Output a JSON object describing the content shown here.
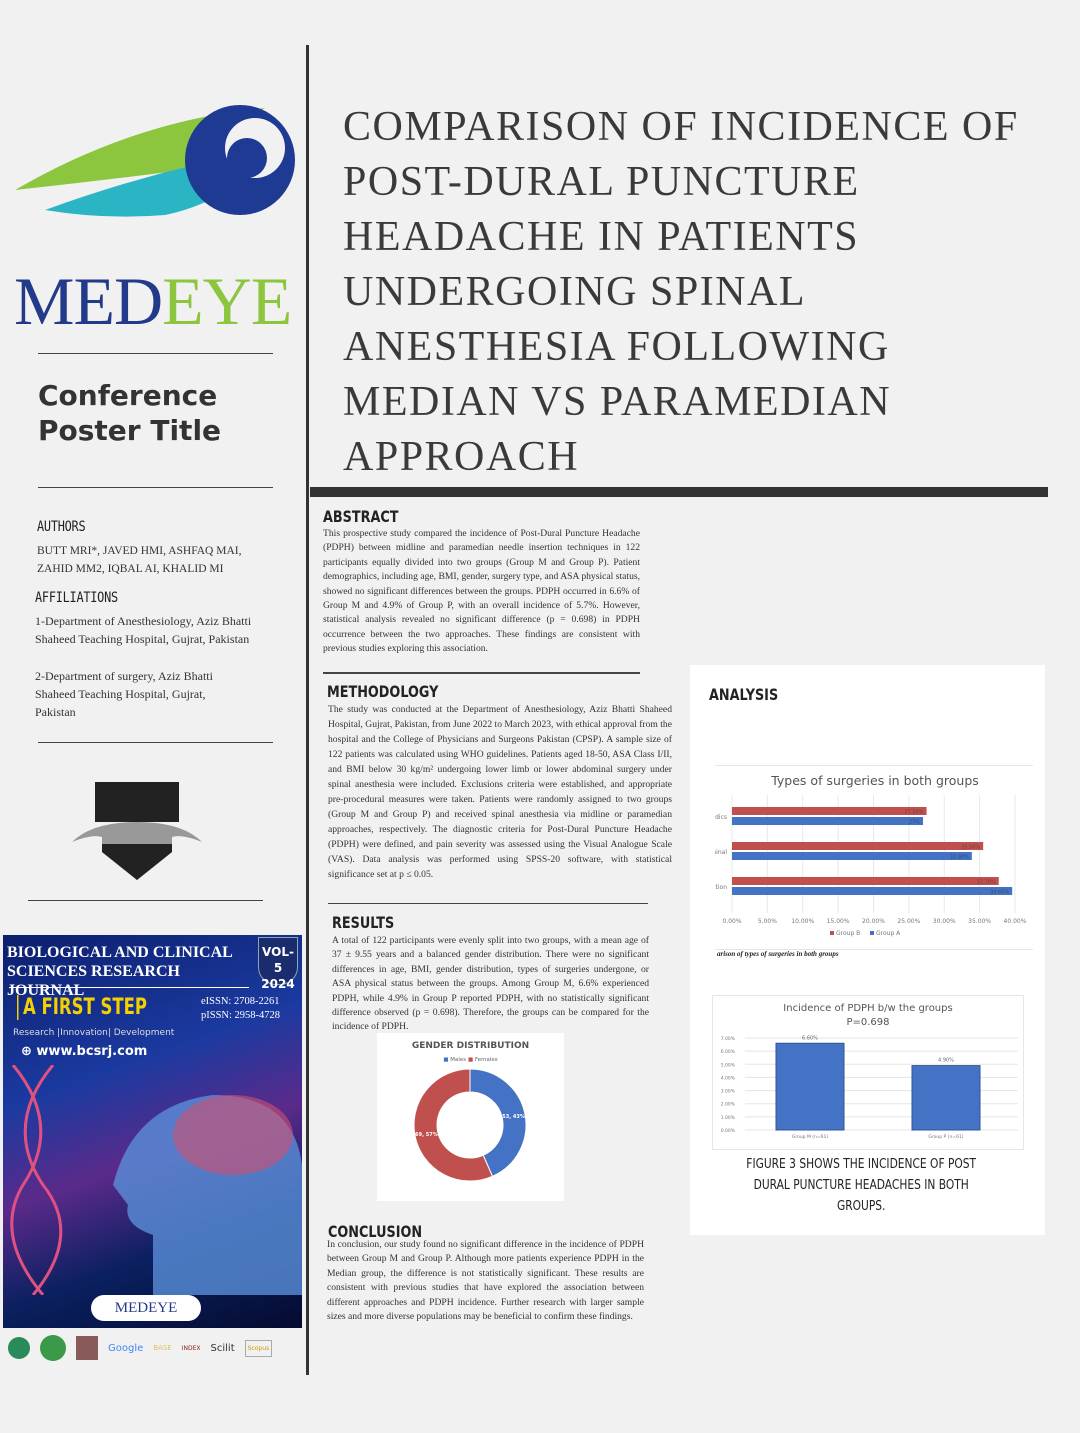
{
  "title": "COMPARISON OF INCIDENCE OF POST-DURAL PUNCTURE HEADACHE IN PATIENTS UNDERGOING SPINAL ANESTHESIA FOLLOWING MEDIAN VS PARAMEDIAN APPROACH",
  "logo": {
    "part1": "MED",
    "part2": "EYE"
  },
  "conference_title": "Conference Poster Title",
  "authors": {
    "heading": "AUTHORS",
    "text": "BUTT MRI*, JAVED HMI, ASHFAQ MAI, ZAHID MM2, IQBAL AI, KHALID MI"
  },
  "affiliations": {
    "heading": "AFFILIATIONS",
    "items": [
      "1-Department of Anesthesiology, Aziz Bhatti Shaheed Teaching Hospital, Gujrat, Pakistan",
      "2-Department of surgery, Aziz Bhatti Shaheed Teaching Hospital, Gujrat, Pakistan"
    ]
  },
  "journal_cover": {
    "title": "BIOLOGICAL AND CLINICAL SCIENCES RESEARCH JOURNAL",
    "volume": "VOL-5",
    "year": "2024",
    "tagline": "A FIRST STEP",
    "eissn": "eISSN: 2708-2261",
    "pissn": "pISSN: 2958-4728",
    "motto": "Research |Innovation| Development",
    "website": "www.bcsrj.com",
    "badge": "MEDEYE",
    "indexers": [
      "Google",
      "BASE",
      "INDEX",
      "Scilit",
      "Scopus"
    ]
  },
  "abstract": {
    "heading": "ABSTRACT",
    "text": "This prospective study compared the incidence of Post-Dural Puncture Headache (PDPH) between midline and paramedian needle insertion techniques in 122 participants equally divided into two groups (Group M and Group P). Patient demographics, including age, BMI, gender, surgery type, and ASA physical status, showed no significant differences between the groups. PDPH occurred in 6.6% of Group M and 4.9% of Group P, with an overall incidence of 5.7%. However, statistical analysis revealed no significant difference (p = 0.698) in PDPH occurrence between the two approaches. These findings are consistent with previous studies exploring this association."
  },
  "methodology": {
    "heading": "METHODOLOGY",
    "text": "The study was conducted at the Department of Anesthesiology, Aziz Bhatti Shaheed Hospital, Gujrat, Pakistan, from June 2022 to March 2023, with ethical approval from the hospital and the College of Physicians and Surgeons Pakistan (CPSP). A sample size of 122 patients was calculated using WHO guidelines. Patients aged 18-50, ASA Class I/II, and BMI below 30 kg/m² undergoing lower limb or lower abdominal surgery under spinal anesthesia were included. Exclusions criteria were established, and appropriate pre-procedural measures were taken. Patients were randomly assigned to two groups (Group M and Group P) and received spinal anesthesia via midline or paramedian approaches, respectively. The diagnostic criteria for Post-Dural Puncture Headache (PDPH) were defined, and pain severity was assessed using the Visual Analogue Scale (VAS). Data analysis was performed using SPSS-20 software, with statistical significance set at p ≤ 0.05."
  },
  "results": {
    "heading": "RESULTS",
    "text": "A total of 122 participants were evenly split into two groups, with a mean age of 37 ± 9.55 years and a balanced gender distribution. There were no significant differences in age, BMI, gender distribution, types of surgeries undergone, or ASA physical status between the groups. Among Group M, 6.6% experienced PDPH, while 4.9% in Group P reported PDPH, with no statistically significant difference observed (p = 0.698). Therefore, the groups can be compared for the incidence of PDPH."
  },
  "conclusion": {
    "heading": "CONCLUSION",
    "text": "In conclusion, our study found no significant difference in the incidence of PDPH between Group M and Group P. Although more patients experience PDPH in the Median group, the difference is not statistically significant. These results are consistent with previous studies that have explored the association between different approaches and PDPH incidence. Further research with larger sample sizes and more diverse populations may be beneficial to confirm these findings."
  },
  "analysis": {
    "heading": "ANALYSIS",
    "caption": "FIGURE 3 SHOWS THE INCIDENCE OF POST DURAL PUNCTURE HEADACHES IN BOTH GROUPS.",
    "surgery_caption": "arison of types of surgeries in both groups"
  },
  "chart_data": [
    {
      "type": "pie",
      "title": "GENDER DISTRIBUTION",
      "categories": [
        "Males",
        "Females"
      ],
      "values": [
        53,
        69
      ],
      "labels": [
        "53, 43%",
        "69, 57%"
      ],
      "colors": [
        "#4472c4",
        "#c0504d"
      ],
      "style": "donut",
      "legend": "top"
    },
    {
      "type": "bar",
      "orientation": "horizontal",
      "title": "Types of surgeries in both groups",
      "categories": [
        "edics",
        "minal",
        "ction"
      ],
      "series": [
        {
          "name": "Group B",
          "values": [
            27.5,
            35.5,
            37.7
          ],
          "labels": [
            "27.50%",
            "35.50%",
            "37.70%"
          ],
          "color": "#c0504d"
        },
        {
          "name": "Group A",
          "values": [
            27.0,
            33.9,
            39.6
          ],
          "labels": [
            "27%",
            "33.90%",
            "39.60%"
          ],
          "color": "#4472c4"
        }
      ],
      "xticks": [
        "0.00%",
        "5.00%",
        "10.00%",
        "15.00%",
        "20.00%",
        "25.00%",
        "30.00%",
        "35.00%",
        "40.00%",
        "4"
      ],
      "xlim": [
        0,
        40
      ],
      "legend": "bottom"
    },
    {
      "type": "bar",
      "title": "Incidence of PDPH b/w the groups",
      "subtitle": "P=0.698",
      "categories": [
        "Group M (n=61)",
        "Group P (n=61)"
      ],
      "values": [
        6.6,
        4.9
      ],
      "labels": [
        "6.60%",
        "4.90%"
      ],
      "yticks": [
        "0.00%",
        "1.00%",
        "2.00%",
        "3.00%",
        "4.00%",
        "5.00%",
        "6.00%",
        "7.00%"
      ],
      "ylim": [
        0,
        7
      ],
      "grid": true,
      "color": "#4472c4"
    }
  ]
}
